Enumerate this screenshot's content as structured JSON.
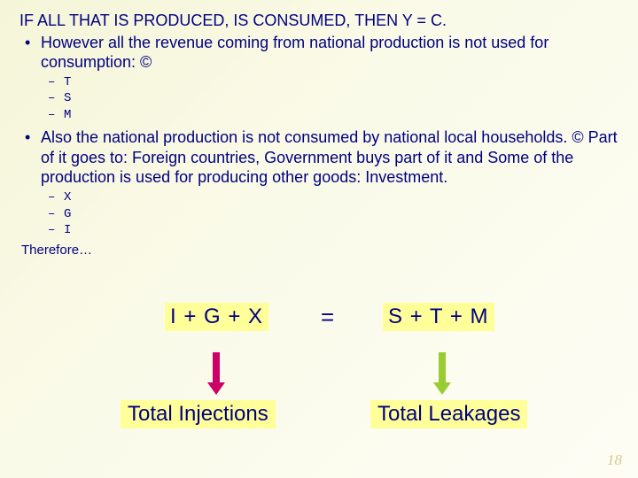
{
  "heading": "IF ALL THAT IS PRODUCED, IS CONSUMED, THEN Y = C.",
  "bullets": [
    {
      "text": "However all the revenue coming from national production is not used for consumption: ©",
      "sub": [
        "T",
        "S",
        "M"
      ]
    },
    {
      "text": "Also the national production is not consumed by national local households. © Part of it goes to: Foreign countries, Government buys part of it and Some of the production is used for producing other goods: Investment.",
      "sub": [
        "X",
        "G",
        "I"
      ]
    }
  ],
  "therefore": "Therefore…",
  "equation": {
    "left": "I + G + X",
    "eq": "=",
    "right": "S + T  + M"
  },
  "labels": {
    "injections": "Total Injections",
    "leakages": "Total Leakages"
  },
  "colors": {
    "text": "#000080",
    "highlight_bg": "#ffff99",
    "arrow_left": "#cc0066",
    "arrow_right": "#99cc33"
  },
  "page_number": "18"
}
